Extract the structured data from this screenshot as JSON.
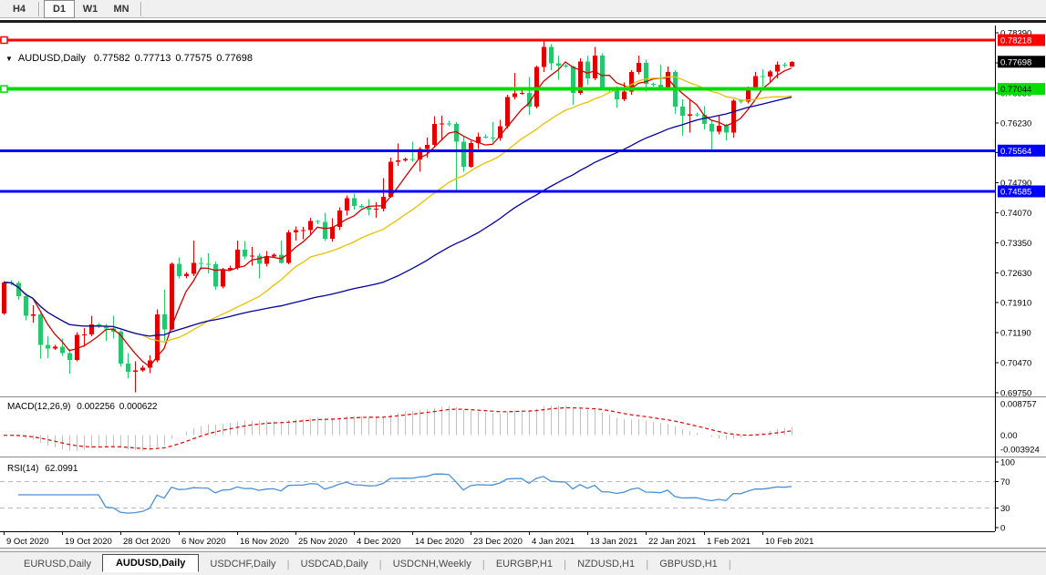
{
  "toolbar": {
    "buttons": [
      {
        "label": "H4",
        "active": false
      },
      {
        "label": "D1",
        "active": true
      },
      {
        "label": "W1",
        "active": false
      },
      {
        "label": "MN",
        "active": false
      }
    ]
  },
  "chart": {
    "title": {
      "dropdown_glyph": "▼",
      "symbol": "AUDUSD,Daily",
      "open": "0.77582",
      "high": "0.77713",
      "low": "0.77575",
      "close": "0.77698"
    }
  },
  "chart_data": {
    "type": "candlestick",
    "symbol": "AUDUSD",
    "timeframe": "Daily",
    "price_axis": {
      "top_price": 0.78568,
      "bottom_price": 0.69617,
      "ticks": [
        0.7839,
        0.7767,
        0.7695,
        0.7623,
        0.7551,
        0.7479,
        0.7407,
        0.7335,
        0.7263,
        0.7191,
        0.7119,
        0.7047,
        0.6975
      ]
    },
    "current_price": {
      "value": 0.77698,
      "bg": "#000000",
      "fg": "#FFFFFF"
    },
    "levels": [
      {
        "price": 0.78218,
        "color": "#FF0000",
        "width": 3,
        "handle": true,
        "badge_fg": "#FFFFFF"
      },
      {
        "price": 0.77044,
        "color": "#00DD00",
        "width": 4,
        "handle": true,
        "badge_fg": "#000000"
      },
      {
        "price": 0.75564,
        "color": "#0000FF",
        "width": 3,
        "handle": false,
        "badge_fg": "#FFFFFF"
      },
      {
        "price": 0.74585,
        "color": "#0000FF",
        "width": 3,
        "handle": false,
        "badge_fg": "#FFFFFF"
      }
    ],
    "candle_colors": {
      "bull": "#E00000",
      "bear": "#2BC46E"
    },
    "moving_averages": [
      {
        "period": 5,
        "color": "#CC0000"
      },
      {
        "period": 20,
        "color": "#E8C000"
      },
      {
        "period": 50,
        "color": "#0000A0"
      }
    ],
    "x_labels": [
      {
        "t": "9 Oct 2020",
        "i": 0
      },
      {
        "t": "19 Oct 2020",
        "i": 8
      },
      {
        "t": "28 Oct 2020",
        "i": 16
      },
      {
        "t": "6 Nov 2020",
        "i": 24
      },
      {
        "t": "16 Nov 2020",
        "i": 32
      },
      {
        "t": "25 Nov 2020",
        "i": 40
      },
      {
        "t": "4 Dec 2020",
        "i": 48
      },
      {
        "t": "14 Dec 2020",
        "i": 56
      },
      {
        "t": "23 Dec 2020",
        "i": 64
      },
      {
        "t": "4 Jan 2021",
        "i": 72
      },
      {
        "t": "13 Jan 2021",
        "i": 80
      },
      {
        "t": "22 Jan 2021",
        "i": 88
      },
      {
        "t": "1 Feb 2021",
        "i": 96
      },
      {
        "t": "10 Feb 2021",
        "i": 104
      }
    ],
    "candles": [
      [
        0.7165,
        0.7243,
        0.7162,
        0.724
      ],
      [
        0.724,
        0.7245,
        0.7233,
        0.7238
      ],
      [
        0.7238,
        0.7243,
        0.7198,
        0.7207
      ],
      [
        0.7207,
        0.7215,
        0.7149,
        0.716
      ],
      [
        0.716,
        0.7185,
        0.7143,
        0.7163
      ],
      [
        0.7163,
        0.7166,
        0.7057,
        0.709
      ],
      [
        0.709,
        0.711,
        0.7058,
        0.7081
      ],
      [
        0.7081,
        0.709,
        0.7078,
        0.7085
      ],
      [
        0.7085,
        0.7105,
        0.7063,
        0.707
      ],
      [
        0.707,
        0.708,
        0.7021,
        0.7054
      ],
      [
        0.7054,
        0.712,
        0.705,
        0.7114
      ],
      [
        0.7114,
        0.713,
        0.7085,
        0.7115
      ],
      [
        0.7115,
        0.716,
        0.711,
        0.7139
      ],
      [
        0.7139,
        0.7142,
        0.713,
        0.7135
      ],
      [
        0.7135,
        0.714,
        0.71,
        0.7129
      ],
      [
        0.7129,
        0.716,
        0.7105,
        0.7121
      ],
      [
        0.7121,
        0.7125,
        0.7037,
        0.7045
      ],
      [
        0.7045,
        0.707,
        0.701,
        0.7025
      ],
      [
        0.7025,
        0.705,
        0.6976,
        0.7028
      ],
      [
        0.7028,
        0.704,
        0.7025,
        0.7035
      ],
      [
        0.7035,
        0.7065,
        0.7022,
        0.7053
      ],
      [
        0.7053,
        0.7175,
        0.7048,
        0.7163
      ],
      [
        0.7163,
        0.7222,
        0.71,
        0.7127
      ],
      [
        0.7127,
        0.7288,
        0.7125,
        0.7285
      ],
      [
        0.7285,
        0.73,
        0.725,
        0.7255
      ],
      [
        0.7255,
        0.7265,
        0.725,
        0.726
      ],
      [
        0.726,
        0.734,
        0.7255,
        0.7287
      ],
      [
        0.7287,
        0.73,
        0.727,
        0.7284
      ],
      [
        0.7284,
        0.731,
        0.7262,
        0.7283
      ],
      [
        0.7283,
        0.729,
        0.7222,
        0.723
      ],
      [
        0.723,
        0.7275,
        0.7225,
        0.727
      ],
      [
        0.727,
        0.728,
        0.7268,
        0.7275
      ],
      [
        0.7275,
        0.734,
        0.727,
        0.7318
      ],
      [
        0.7318,
        0.7339,
        0.7295,
        0.7302
      ],
      [
        0.7302,
        0.7325,
        0.728,
        0.7304
      ],
      [
        0.7304,
        0.731,
        0.725,
        0.7285
      ],
      [
        0.7285,
        0.7315,
        0.7278,
        0.7302
      ],
      [
        0.7302,
        0.731,
        0.73,
        0.7306
      ],
      [
        0.7306,
        0.734,
        0.7285,
        0.7287
      ],
      [
        0.7287,
        0.7366,
        0.7283,
        0.736
      ],
      [
        0.736,
        0.7374,
        0.734,
        0.7365
      ],
      [
        0.7365,
        0.7373,
        0.7344,
        0.7365
      ],
      [
        0.7365,
        0.7395,
        0.7355,
        0.7387
      ],
      [
        0.7387,
        0.739,
        0.738,
        0.7385
      ],
      [
        0.7385,
        0.7407,
        0.7339,
        0.7345
      ],
      [
        0.7345,
        0.7394,
        0.7338,
        0.7373
      ],
      [
        0.7373,
        0.742,
        0.7365,
        0.7413
      ],
      [
        0.7413,
        0.7449,
        0.74,
        0.7442
      ],
      [
        0.7442,
        0.7453,
        0.7415,
        0.7423
      ],
      [
        0.7423,
        0.7428,
        0.7418,
        0.742
      ],
      [
        0.742,
        0.744,
        0.74,
        0.7415
      ],
      [
        0.7415,
        0.7432,
        0.7395,
        0.7417
      ],
      [
        0.7417,
        0.749,
        0.741,
        0.7445
      ],
      [
        0.7445,
        0.754,
        0.7443,
        0.753
      ],
      [
        0.753,
        0.7573,
        0.752,
        0.7533
      ],
      [
        0.7533,
        0.754,
        0.753,
        0.7536
      ],
      [
        0.7536,
        0.7578,
        0.753,
        0.7535
      ],
      [
        0.7535,
        0.7565,
        0.7506,
        0.756
      ],
      [
        0.756,
        0.7588,
        0.754,
        0.757
      ],
      [
        0.757,
        0.7639,
        0.7565,
        0.762
      ],
      [
        0.762,
        0.764,
        0.758,
        0.7622
      ],
      [
        0.7622,
        0.7628,
        0.7615,
        0.762
      ],
      [
        0.762,
        0.7625,
        0.7462,
        0.7578
      ],
      [
        0.7578,
        0.759,
        0.7505,
        0.7518
      ],
      [
        0.7518,
        0.758,
        0.7515,
        0.7575
      ],
      [
        0.7575,
        0.76,
        0.756,
        0.759
      ],
      [
        0.759,
        0.7595,
        0.7585,
        0.7588
      ],
      [
        0.7588,
        0.7625,
        0.7577,
        0.7587
      ],
      [
        0.7587,
        0.763,
        0.758,
        0.7615
      ],
      [
        0.7615,
        0.769,
        0.761,
        0.7685
      ],
      [
        0.7685,
        0.7743,
        0.768,
        0.7694
      ],
      [
        0.7694,
        0.77,
        0.769,
        0.7695
      ],
      [
        0.7695,
        0.7733,
        0.7642,
        0.7662
      ],
      [
        0.7662,
        0.776,
        0.7658,
        0.7757
      ],
      [
        0.7757,
        0.782,
        0.7745,
        0.7805
      ],
      [
        0.7805,
        0.7812,
        0.775,
        0.7766
      ],
      [
        0.7766,
        0.7785,
        0.7727,
        0.776
      ],
      [
        0.776,
        0.7765,
        0.7755,
        0.7758
      ],
      [
        0.7758,
        0.776,
        0.7666,
        0.7695
      ],
      [
        0.7695,
        0.7778,
        0.769,
        0.777
      ],
      [
        0.777,
        0.7785,
        0.7715,
        0.773
      ],
      [
        0.773,
        0.7805,
        0.7725,
        0.7785
      ],
      [
        0.7785,
        0.779,
        0.77,
        0.7702
      ],
      [
        0.7702,
        0.7706,
        0.7695,
        0.77
      ],
      [
        0.77,
        0.771,
        0.7659,
        0.768
      ],
      [
        0.768,
        0.772,
        0.7675,
        0.7698
      ],
      [
        0.7698,
        0.775,
        0.769,
        0.7745
      ],
      [
        0.7745,
        0.7785,
        0.774,
        0.7767
      ],
      [
        0.7767,
        0.7775,
        0.7698,
        0.7717
      ],
      [
        0.7717,
        0.772,
        0.771,
        0.7715
      ],
      [
        0.7715,
        0.7763,
        0.7705,
        0.7709
      ],
      [
        0.7709,
        0.7758,
        0.7705,
        0.7745
      ],
      [
        0.7745,
        0.775,
        0.7645,
        0.7662
      ],
      [
        0.7662,
        0.768,
        0.7592,
        0.764
      ],
      [
        0.764,
        0.768,
        0.76,
        0.7643
      ],
      [
        0.7643,
        0.7648,
        0.7638,
        0.7642
      ],
      [
        0.7642,
        0.7663,
        0.7607,
        0.762
      ],
      [
        0.762,
        0.763,
        0.7557,
        0.7602
      ],
      [
        0.7602,
        0.764,
        0.7595,
        0.7616
      ],
      [
        0.7616,
        0.762,
        0.7581,
        0.76
      ],
      [
        0.76,
        0.768,
        0.7588,
        0.7676
      ],
      [
        0.7676,
        0.768,
        0.767,
        0.7674
      ],
      [
        0.7674,
        0.771,
        0.767,
        0.7706
      ],
      [
        0.7706,
        0.7745,
        0.77,
        0.7735
      ],
      [
        0.7735,
        0.7752,
        0.771,
        0.7734
      ],
      [
        0.7734,
        0.775,
        0.772,
        0.7746
      ],
      [
        0.7746,
        0.777,
        0.773,
        0.7763
      ],
      [
        0.7763,
        0.7768,
        0.7756,
        0.776
      ],
      [
        0.77582,
        0.77713,
        0.77575,
        0.77698
      ]
    ],
    "macd": {
      "label": "MACD(12,26,9)",
      "value_main": "0.002256",
      "value_signal": "0.000622",
      "fast": 12,
      "slow": 26,
      "signal": 9,
      "axis_labels": [
        0.008757,
        0.0,
        -0.003924
      ],
      "hist_color": "#C0C0C0",
      "signal_color": "#DD0000"
    },
    "rsi": {
      "label": "RSI(14)",
      "value": "62.0991",
      "period": 14,
      "color": "#4A90D9",
      "levels": [
        70,
        30
      ],
      "axis_labels": [
        100,
        70,
        30,
        0
      ]
    }
  },
  "footer": {
    "tabs": [
      {
        "label": "EURUSD,Daily",
        "active": false
      },
      {
        "label": "AUDUSD,Daily",
        "active": true
      },
      {
        "label": "USDCHF,Daily",
        "active": false
      },
      {
        "label": "USDCAD,Daily",
        "active": false
      },
      {
        "label": "USDCNH,Weekly",
        "active": false
      },
      {
        "label": "EURGBP,H1",
        "active": false
      },
      {
        "label": "NZDUSD,H1",
        "active": false
      },
      {
        "label": "GBPUSD,H1",
        "active": false
      }
    ]
  }
}
